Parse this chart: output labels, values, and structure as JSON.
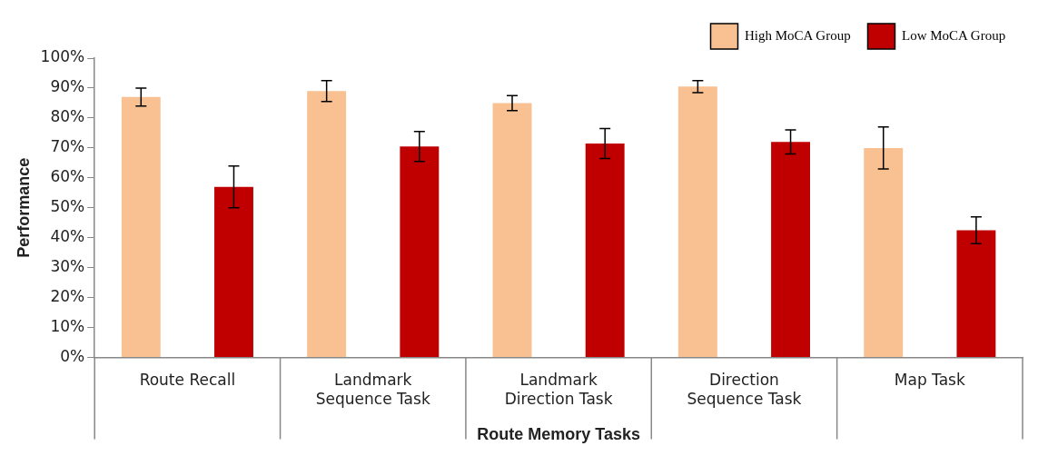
{
  "chart_data": {
    "type": "bar",
    "xlabel": "Route Memory Tasks",
    "ylabel": "Performance",
    "categories": [
      "Route Recall",
      "Landmark Sequence Task",
      "Landmark Direction Task",
      "Direction Sequence Task",
      "Map Task"
    ],
    "series": [
      {
        "name": "High MoCA Group",
        "color": "#f9c091",
        "values": [
          87,
          89,
          85,
          90.5,
          70
        ],
        "errors": [
          3,
          3.5,
          2.5,
          2,
          7
        ]
      },
      {
        "name": "Low MoCA Group",
        "color": "#c00000",
        "values": [
          57,
          70.5,
          71.5,
          72,
          42.5
        ],
        "errors": [
          7,
          5,
          5,
          4,
          4.5
        ]
      }
    ],
    "ylim": [
      0,
      100
    ],
    "yticks": [
      {
        "value": 0,
        "label": "0%"
      },
      {
        "value": 10,
        "label": "10%"
      },
      {
        "value": 20,
        "label": "20%"
      },
      {
        "value": 30,
        "label": "30%"
      },
      {
        "value": 40,
        "label": "40%"
      },
      {
        "value": 50,
        "label": "50%"
      },
      {
        "value": 60,
        "label": "60%"
      },
      {
        "value": 70,
        "label": "70%"
      },
      {
        "value": 80,
        "label": "80%"
      },
      {
        "value": 90,
        "label": "90%"
      },
      {
        "value": 100,
        "label": "100%"
      }
    ],
    "grid": false,
    "legend": "top right"
  }
}
